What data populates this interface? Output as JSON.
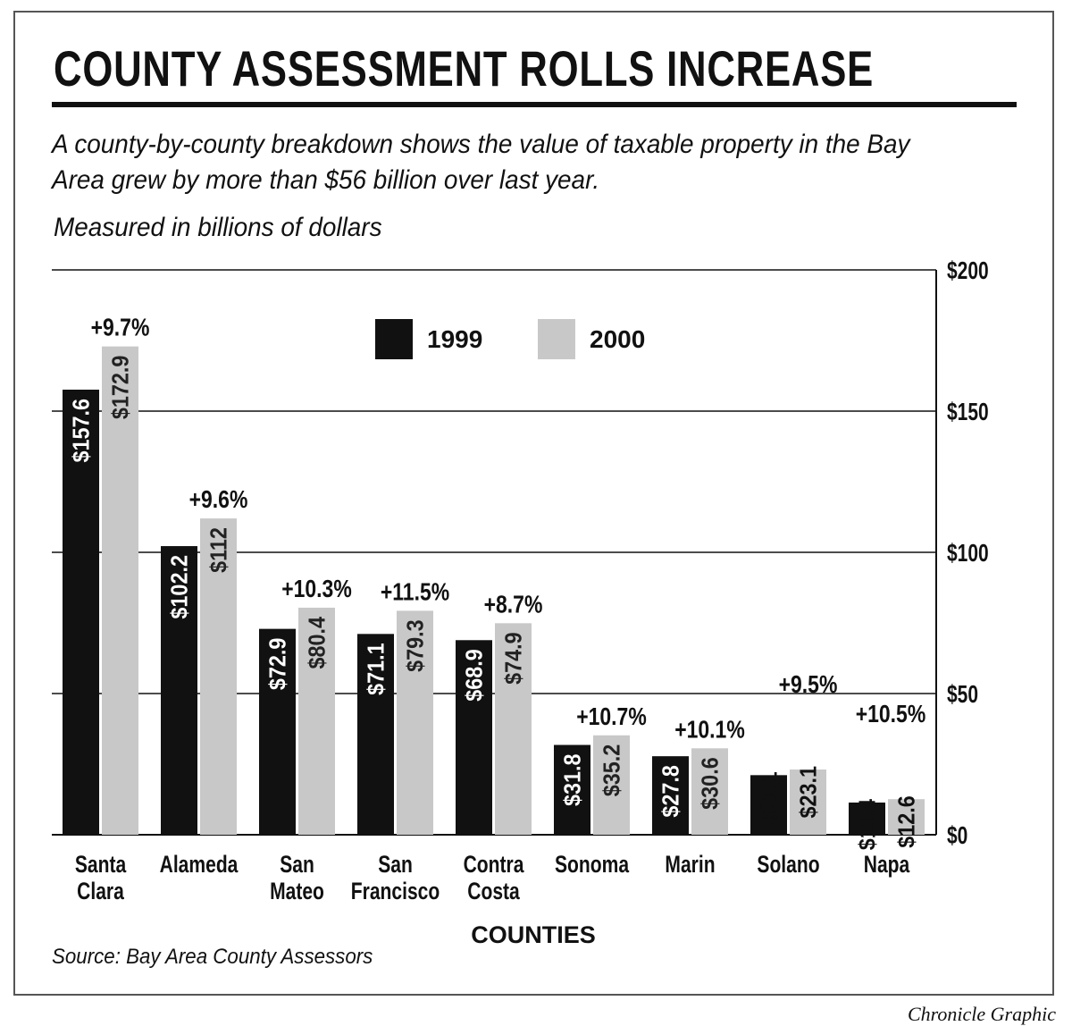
{
  "title": "COUNTY ASSESSMENT ROLLS INCREASE",
  "subtitle": "A county-by-county breakdown shows the value of taxable property in the Bay Area grew by more than $56 billion over last year.",
  "units_note": "Measured in billions of dollars",
  "source": "Source: Bay Area County Assessors",
  "credit": "Chronicle Graphic",
  "chart_data": {
    "type": "bar",
    "xlabel": "COUNTIES",
    "ylabel": "",
    "ylim": [
      0,
      200
    ],
    "yticks": [
      0,
      50,
      100,
      150,
      200
    ],
    "ytick_labels": [
      "$0",
      "$50",
      "$100",
      "$150",
      "$200"
    ],
    "y_axis_side": "right",
    "grid": true,
    "legend_placement": "top-center",
    "categories": [
      [
        "Santa",
        "Clara"
      ],
      [
        "Alameda"
      ],
      [
        "San",
        "Mateo"
      ],
      [
        "San",
        "Francisco"
      ],
      [
        "Contra",
        "Costa"
      ],
      [
        "Sonoma"
      ],
      [
        "Marin"
      ],
      [
        "Solano"
      ],
      [
        "Napa"
      ]
    ],
    "series": [
      {
        "name": "1999",
        "color": "#111111",
        "values": [
          157.6,
          102.2,
          72.9,
          71.1,
          68.9,
          31.8,
          27.8,
          21.1,
          11.4
        ],
        "labels": [
          "$157.6",
          "$102.2",
          "$72.9",
          "$71.1",
          "$68.9",
          "$31.8",
          "$27.8",
          "$21.1",
          "$11.4"
        ]
      },
      {
        "name": "2000",
        "color": "#c8c8c8",
        "values": [
          172.9,
          112,
          80.4,
          79.3,
          74.9,
          35.2,
          30.6,
          23.1,
          12.6
        ],
        "labels": [
          "$172.9",
          "$112",
          "$80.4",
          "$79.3",
          "$74.9",
          "$35.2",
          "$30.6",
          "$23.1",
          "$12.6"
        ]
      }
    ],
    "percent_change": [
      "+9.7%",
      "+9.6%",
      "+10.3%",
      "+11.5%",
      "+8.7%",
      "+10.7%",
      "+10.1%",
      "+9.5%",
      "+10.5%"
    ]
  }
}
